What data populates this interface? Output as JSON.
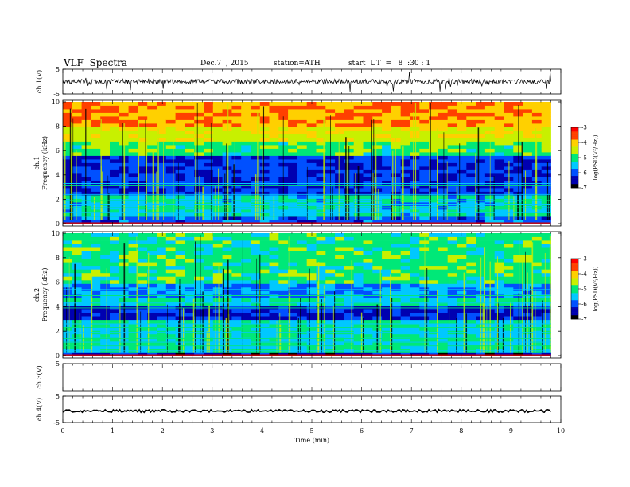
{
  "header": {
    "title": "VLF  Spectra",
    "date": "Dec.7  , 2015",
    "station": "station=ATH",
    "start": "start  UT  =   8  :30 : 1"
  },
  "chart_data": {
    "type": "heatmap",
    "title": "VLF  Spectra",
    "xlabel": "Time  (min)",
    "xlim": [
      0,
      10
    ],
    "x_ticks": [
      "0",
      "1",
      "2",
      "3",
      "4",
      "5",
      "6",
      "7",
      "8",
      "9",
      "10"
    ],
    "panels": [
      {
        "name": "ch1-waveform",
        "kind": "line",
        "ylabel": "ch.1(V)",
        "ylim": [
          -5,
          5
        ],
        "y_tick_labels": [
          "5",
          "-5"
        ],
        "level": 0.0,
        "noise": "high",
        "data_end": 9.8
      },
      {
        "name": "ch1-spectrogram",
        "kind": "heatmap",
        "ylabel": "Frequency  (kHz)",
        "channel_label": "ch.1",
        "ylim": [
          0,
          10
        ],
        "y_tick_labels": [
          "0",
          "2",
          "4",
          "6",
          "8",
          "10"
        ],
        "colorbar": {
          "label": "log(PSD(V²/Hz))",
          "range": [
            -7,
            -3
          ],
          "ticks": [
            "-3",
            "-4",
            "-5",
            "-6",
            "-7"
          ]
        },
        "data_end": 9.8
      },
      {
        "name": "ch2-spectrogram",
        "kind": "heatmap",
        "ylabel": "Frequency  (kHz)",
        "channel_label": "ch.2",
        "ylim": [
          0,
          10
        ],
        "y_tick_labels": [
          "0",
          "2",
          "4",
          "6",
          "8",
          "10"
        ],
        "colorbar": {
          "label": "log(PSD(V²/Hz))",
          "range": [
            -7,
            -3
          ],
          "ticks": [
            "-3",
            "-4",
            "-5",
            "-6",
            "-7"
          ]
        },
        "data_end": 9.8
      },
      {
        "name": "ch3-waveform",
        "kind": "line",
        "ylabel": "ch.3(V)",
        "ylim": [
          -5,
          5
        ],
        "y_tick_labels": [
          "5"
        ],
        "level": null
      },
      {
        "name": "ch4-waveform",
        "kind": "line",
        "ylabel": "ch.4(V)",
        "ylim": [
          -5,
          5
        ],
        "y_tick_labels": [
          "5",
          "-5"
        ],
        "level": -0.6,
        "noise": "low",
        "data_end": 9.8
      }
    ],
    "colormap": [
      "#000000",
      "#0000b0",
      "#0050ff",
      "#00c8ff",
      "#00e878",
      "#c8f000",
      "#ffd000",
      "#ff4000",
      "#ff0000"
    ],
    "grid": false
  }
}
